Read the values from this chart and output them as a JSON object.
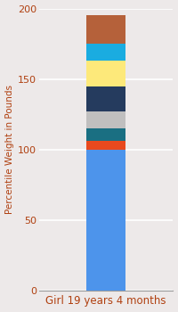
{
  "category": "Girl 19 years 4 months",
  "segments": [
    {
      "value": 100,
      "color": "#4d94eb"
    },
    {
      "value": 6,
      "color": "#e8491e"
    },
    {
      "value": 9,
      "color": "#1a6f82"
    },
    {
      "value": 12,
      "color": "#c0bfbf"
    },
    {
      "value": 18,
      "color": "#253b5e"
    },
    {
      "value": 18,
      "color": "#fde97a"
    },
    {
      "value": 12,
      "color": "#1aace0"
    },
    {
      "value": 20,
      "color": "#b5613a"
    }
  ],
  "ylabel": "Percentile Weight in Pounds",
  "ylim": [
    0,
    200
  ],
  "yticks": [
    0,
    50,
    100,
    150,
    200
  ],
  "background_color": "#ede9e9",
  "bar_width": 0.35,
  "xlabel_fontsize": 8.5,
  "ylabel_fontsize": 7.5,
  "tick_fontsize": 8,
  "title": ""
}
